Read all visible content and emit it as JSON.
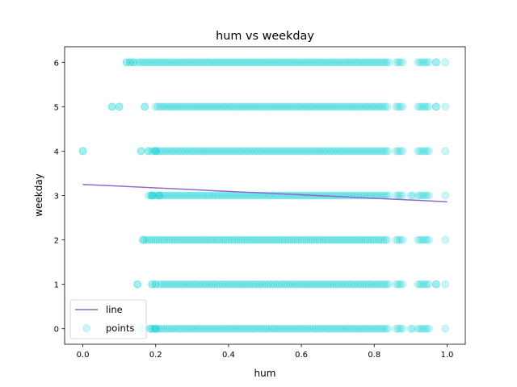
{
  "chart_data": {
    "type": "scatter",
    "title": "hum vs weekday",
    "xlabel": "hum",
    "ylabel": "weekday",
    "xlim": [
      -0.05,
      1.05
    ],
    "ylim": [
      -0.35,
      6.35
    ],
    "xticks": [
      0.0,
      0.2,
      0.4,
      0.6,
      0.8,
      1.0
    ],
    "xtick_labels": [
      "0.0",
      "0.2",
      "0.4",
      "0.6",
      "0.8",
      "1.0"
    ],
    "yticks": [
      0,
      1,
      2,
      3,
      4,
      5,
      6
    ],
    "ytick_labels": [
      "0",
      "1",
      "2",
      "3",
      "4",
      "5",
      "6"
    ],
    "grid": false,
    "legend_position": "lower-left",
    "series": [
      {
        "name": "line",
        "kind": "line",
        "color": "#9467d0",
        "x": [
          0.0,
          1.0
        ],
        "y": [
          3.25,
          2.86
        ]
      },
      {
        "name": "points",
        "kind": "scatter",
        "color": "#00ced1",
        "alpha": 0.2,
        "rows": [
          {
            "y": 0,
            "segments": [
              [
                0.19,
                0.84
              ],
              [
                0.86,
                0.88
              ],
              [
                0.9,
                0.91
              ],
              [
                0.92,
                0.95
              ],
              [
                0.995,
                1.0
              ]
            ],
            "isolated": [
              0.16,
              0.185,
              0.2
            ]
          },
          {
            "y": 1,
            "segments": [
              [
                0.21,
                0.84
              ],
              [
                0.86,
                0.88
              ],
              [
                0.92,
                0.95
              ],
              [
                0.995,
                1.0
              ]
            ],
            "isolated": [
              0.15,
              0.19,
              0.2,
              0.97
            ]
          },
          {
            "y": 2,
            "segments": [
              [
                0.17,
                0.84
              ],
              [
                0.86,
                0.88
              ],
              [
                0.92,
                0.95
              ],
              [
                0.995,
                1.0
              ]
            ],
            "isolated": [
              0.165
            ]
          },
          {
            "y": 3,
            "segments": [
              [
                0.18,
                0.84
              ],
              [
                0.86,
                0.88
              ],
              [
                0.9,
                0.91
              ],
              [
                0.92,
                0.95
              ],
              [
                0.995,
                1.0
              ]
            ],
            "isolated": [
              0.19,
              0.21
            ]
          },
          {
            "y": 4,
            "segments": [
              [
                0.19,
                0.84
              ],
              [
                0.86,
                0.88
              ],
              [
                0.92,
                0.95
              ],
              [
                0.995,
                1.0
              ]
            ],
            "isolated": [
              0.0,
              0.16,
              0.18,
              0.2
            ]
          },
          {
            "y": 5,
            "segments": [
              [
                0.2,
                0.84
              ],
              [
                0.86,
                0.88
              ],
              [
                0.92,
                0.95
              ],
              [
                0.995,
                1.0
              ]
            ],
            "isolated": [
              0.08,
              0.1,
              0.17,
              0.97
            ]
          },
          {
            "y": 6,
            "segments": [
              [
                0.15,
                0.84
              ],
              [
                0.86,
                0.88
              ],
              [
                0.92,
                0.95
              ],
              [
                0.995,
                1.0
              ]
            ],
            "isolated": [
              0.12,
              0.13,
              0.14,
              0.97
            ]
          }
        ]
      }
    ]
  }
}
